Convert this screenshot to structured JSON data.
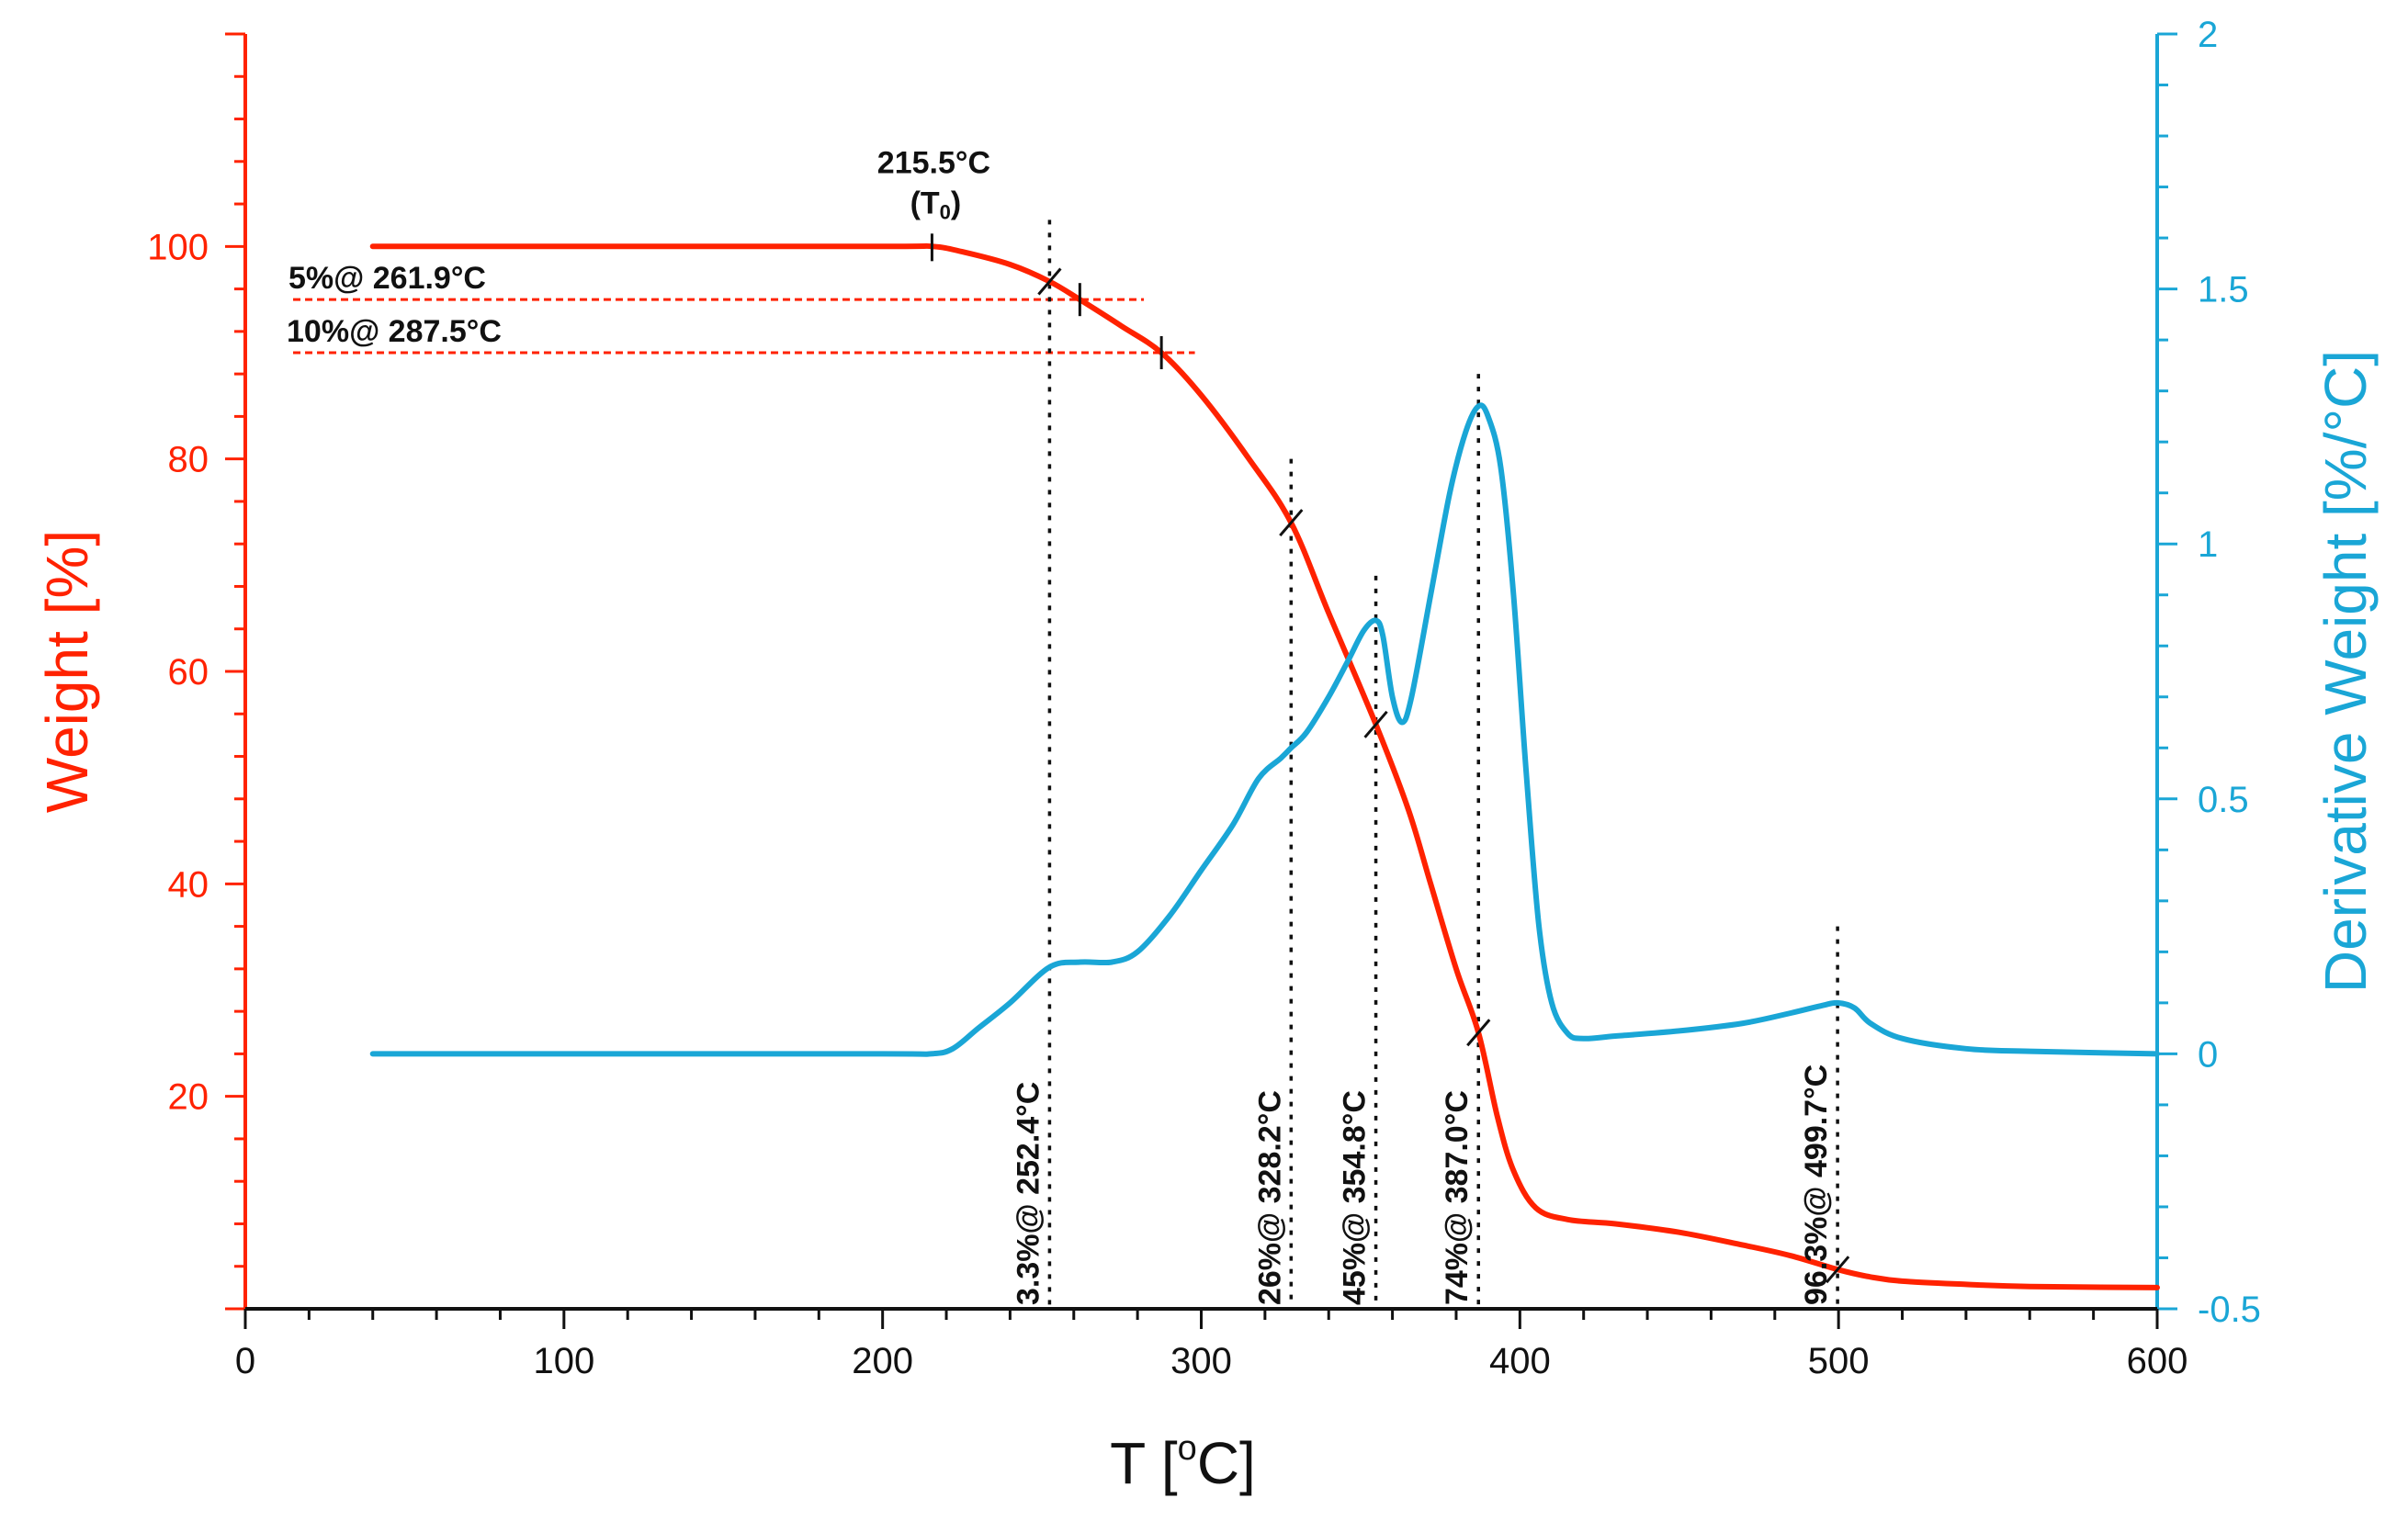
{
  "chart_data": {
    "type": "line",
    "xlabel_main": "T [",
    "xlabel_sup": "o",
    "xlabel_end": "C]",
    "ylabel_left": "Weight [%]",
    "ylabel_right": "Derivative Weight [%/°C]",
    "xlim": [
      0,
      600
    ],
    "ylim_left": [
      0,
      120
    ],
    "ylim_right": [
      -0.5,
      2
    ],
    "x_ticks": [
      0,
      100,
      200,
      300,
      400,
      500,
      600
    ],
    "x_tick_labels": [
      "0",
      "100",
      "200",
      "300",
      "400",
      "500",
      "600"
    ],
    "y_left_ticks": [
      20,
      40,
      60,
      80,
      100
    ],
    "y_left_tick_labels": [
      "20",
      "40",
      "60",
      "80",
      "100"
    ],
    "y_right_ticks": [
      -0.5,
      0,
      0.5,
      1,
      1.5,
      2
    ],
    "y_right_tick_labels": [
      "-0.5",
      "0",
      "0.5",
      "1",
      "1.5",
      "2"
    ],
    "colors": {
      "weight": "#ff2200",
      "derivative": "#1aa6d6",
      "axis_bottom": "#111111",
      "annotation": "#111111"
    },
    "series": [
      {
        "name": "Weight",
        "axis": "left",
        "x": [
          40,
          100,
          200,
          215.5,
          225,
          240,
          252.4,
          261.9,
          275,
          287.5,
          300,
          315,
          328.2,
          340,
          354.8,
          365,
          372,
          380,
          387,
          393,
          398,
          405,
          415,
          430,
          450,
          470,
          485,
          499.7,
          510,
          520,
          540,
          560,
          600
        ],
        "y": [
          100,
          100,
          100,
          100,
          99.5,
          98.3,
          96.7,
          95,
          92.5,
          90,
          86,
          80,
          74,
          65.5,
          55,
          47,
          40,
          32,
          26,
          18,
          13,
          9.5,
          8.4,
          8,
          7.2,
          6,
          5,
          3.7,
          3,
          2.6,
          2.3,
          2.1,
          2.0
        ]
      },
      {
        "name": "Derivative Weight",
        "axis": "right",
        "x": [
          40,
          100,
          200,
          215,
          222,
          230,
          240,
          252.4,
          262,
          272,
          280,
          290,
          300,
          310,
          318,
          325,
          328.2,
          333,
          340,
          346,
          351,
          354.8,
          357,
          360,
          363,
          366,
          372,
          378,
          383,
          387,
          390,
          394,
          398,
          402,
          406,
          410,
          415,
          420,
          430,
          450,
          470,
          485,
          495,
          499.7,
          505,
          510,
          520,
          540,
          560,
          600
        ],
        "y": [
          0,
          0,
          0,
          0,
          0.01,
          0.05,
          0.1,
          0.17,
          0.18,
          0.18,
          0.2,
          0.27,
          0.36,
          0.45,
          0.54,
          0.58,
          0.6,
          0.63,
          0.7,
          0.77,
          0.83,
          0.85,
          0.82,
          0.7,
          0.65,
          0.7,
          0.9,
          1.1,
          1.22,
          1.27,
          1.25,
          1.15,
          0.9,
          0.55,
          0.25,
          0.1,
          0.04,
          0.03,
          0.035,
          0.045,
          0.06,
          0.08,
          0.095,
          0.1,
          0.09,
          0.06,
          0.03,
          0.01,
          0.005,
          0.0
        ]
      }
    ],
    "annotations": {
      "onset": {
        "label": "215.5°C",
        "sub_label": "(T",
        "sub_index": "0",
        "sub_close": ")",
        "x": 215.5,
        "y": 100
      },
      "horizontal": [
        {
          "label": "5%@ 261.9°C",
          "y": 95,
          "x_start": 15,
          "x_end": 282,
          "mark_x": 261.9
        },
        {
          "label": "10%@ 287.5°C",
          "y": 90,
          "x_start": 15,
          "x_end": 298,
          "mark_x": 287.5
        }
      ],
      "vertical": [
        {
          "label": "3.3%@ 252.4°C",
          "x": 252.4,
          "y_top": 102.5,
          "weight_y": 96.7
        },
        {
          "label": "26%@ 328.2°C",
          "x": 328.2,
          "y_top": 80,
          "weight_y": 74
        },
        {
          "label": "45%@ 354.8°C",
          "x": 354.8,
          "y_top": 69,
          "weight_y": 55
        },
        {
          "label": "74%@ 387.0°C",
          "x": 387.0,
          "y_top": 88,
          "weight_y": 26
        },
        {
          "label": "96.3%@ 499.7°C",
          "x": 499.7,
          "y_top": 36,
          "weight_y": 3.7
        }
      ]
    }
  }
}
